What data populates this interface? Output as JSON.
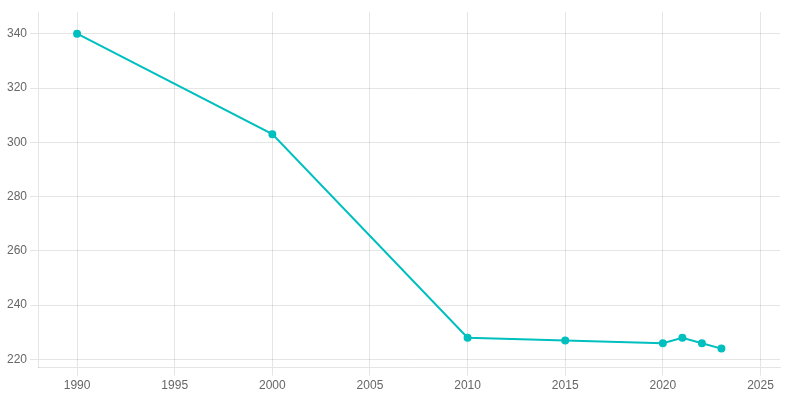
{
  "chart_data": {
    "type": "line",
    "x": [
      1990,
      2000,
      2010,
      2015,
      2020,
      2021,
      2022,
      2023
    ],
    "values": [
      340,
      303,
      228,
      227,
      226,
      228,
      226,
      224
    ],
    "color": "#00BFBF",
    "marker": "circle",
    "line_style": "solid",
    "xlim": [
      1988,
      2026
    ],
    "ylim": [
      217,
      348
    ],
    "xticks": [
      1990,
      1995,
      2000,
      2005,
      2010,
      2015,
      2020,
      2025
    ],
    "yticks": [
      220,
      240,
      260,
      280,
      300,
      320,
      340
    ],
    "grid": true
  }
}
